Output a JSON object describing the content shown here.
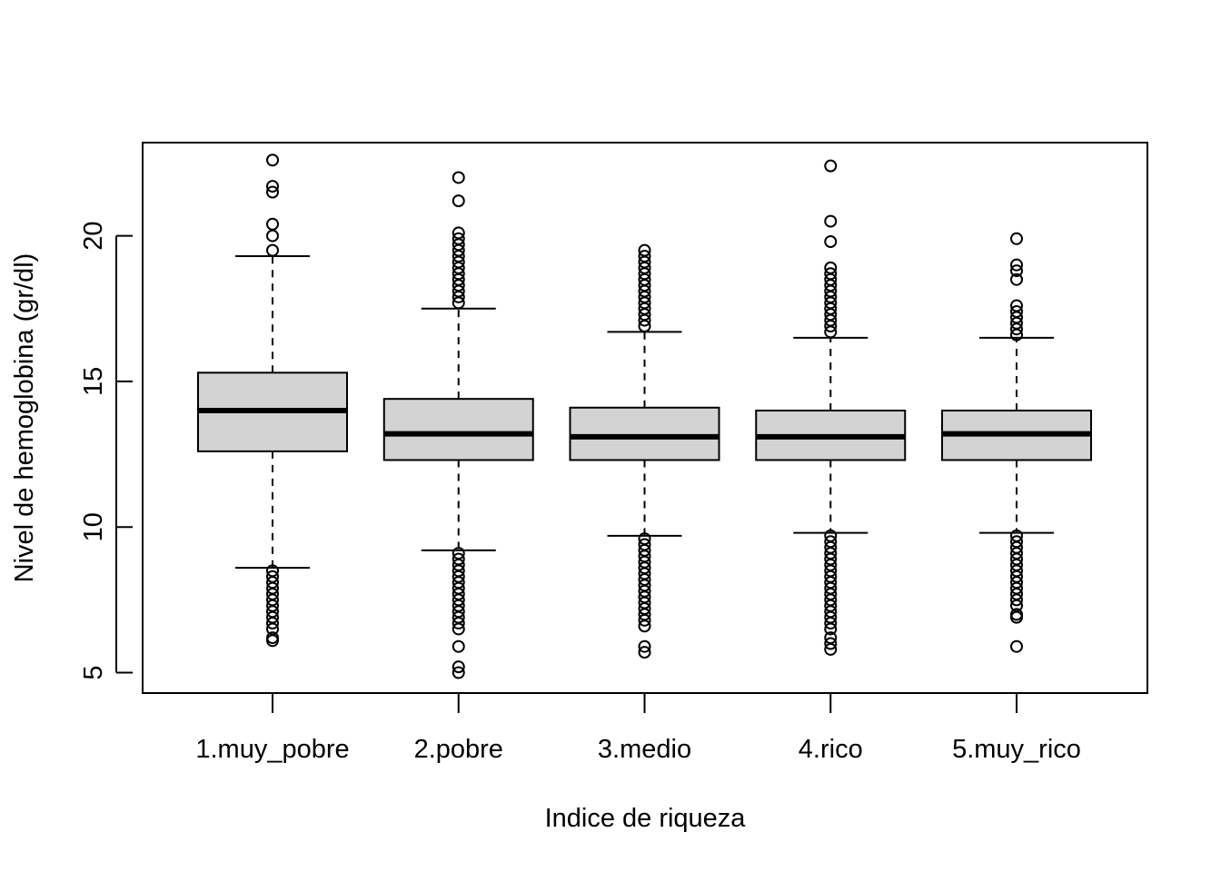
{
  "chart_data": {
    "type": "boxplot",
    "title": "",
    "xlabel": "Indice de riqueza",
    "ylabel": "Nivel de hemoglobina (gr/dl)",
    "ylim": [
      4.3,
      23.2
    ],
    "yticks": [
      5,
      10,
      15,
      20
    ],
    "categories": [
      "1.muy_pobre",
      "2.pobre",
      "3.medio",
      "4.rico",
      "5.muy_rico"
    ],
    "box_color": "#d3d3d3",
    "series": [
      {
        "category": "1.muy_pobre",
        "whisker_low": 8.6,
        "q1": 12.6,
        "median": 14.0,
        "q3": 15.3,
        "whisker_high": 19.3,
        "outliers": [
          22.6,
          21.7,
          21.5,
          20.4,
          20.0,
          19.5,
          8.5,
          8.3,
          8.1,
          7.9,
          7.7,
          7.5,
          7.3,
          7.1,
          6.9,
          6.7,
          6.5,
          6.2,
          6.1
        ]
      },
      {
        "category": "2.pobre",
        "whisker_low": 9.2,
        "q1": 12.3,
        "median": 13.2,
        "q3": 14.4,
        "whisker_high": 17.5,
        "outliers": [
          22.0,
          21.2,
          20.1,
          19.9,
          19.7,
          19.5,
          19.3,
          19.1,
          18.9,
          18.7,
          18.5,
          18.3,
          18.1,
          17.9,
          17.7,
          9.1,
          8.9,
          8.7,
          8.5,
          8.3,
          8.1,
          7.9,
          7.7,
          7.5,
          7.3,
          7.1,
          6.9,
          6.7,
          6.5,
          5.9,
          5.2,
          5.0
        ]
      },
      {
        "category": "3.medio",
        "whisker_low": 9.7,
        "q1": 12.3,
        "median": 13.1,
        "q3": 14.1,
        "whisker_high": 16.7,
        "outliers": [
          19.5,
          19.3,
          19.1,
          18.9,
          18.7,
          18.5,
          18.3,
          18.1,
          17.9,
          17.7,
          17.5,
          17.3,
          17.1,
          16.9,
          9.6,
          9.4,
          9.2,
          9.0,
          8.8,
          8.6,
          8.4,
          8.2,
          8.0,
          7.8,
          7.6,
          7.4,
          7.2,
          7.0,
          6.8,
          6.6,
          5.9,
          5.7
        ]
      },
      {
        "category": "4.rico",
        "whisker_low": 9.8,
        "q1": 12.3,
        "median": 13.1,
        "q3": 14.0,
        "whisker_high": 16.5,
        "outliers": [
          22.4,
          20.5,
          19.8,
          18.9,
          18.7,
          18.5,
          18.3,
          18.1,
          17.9,
          17.7,
          17.5,
          17.3,
          17.1,
          16.9,
          16.7,
          9.7,
          9.5,
          9.3,
          9.1,
          8.9,
          8.7,
          8.5,
          8.3,
          8.1,
          7.9,
          7.7,
          7.5,
          7.3,
          7.1,
          6.9,
          6.7,
          6.5,
          6.2,
          6.0,
          5.8
        ]
      },
      {
        "category": "5.muy_rico",
        "whisker_low": 9.8,
        "q1": 12.3,
        "median": 13.2,
        "q3": 14.0,
        "whisker_high": 16.5,
        "outliers": [
          19.9,
          19.0,
          18.8,
          18.5,
          17.6,
          17.4,
          17.2,
          17.0,
          16.8,
          16.6,
          9.7,
          9.5,
          9.3,
          9.1,
          8.9,
          8.7,
          8.5,
          8.3,
          8.1,
          7.9,
          7.7,
          7.5,
          7.3,
          7.0,
          6.9,
          5.9
        ]
      }
    ]
  }
}
